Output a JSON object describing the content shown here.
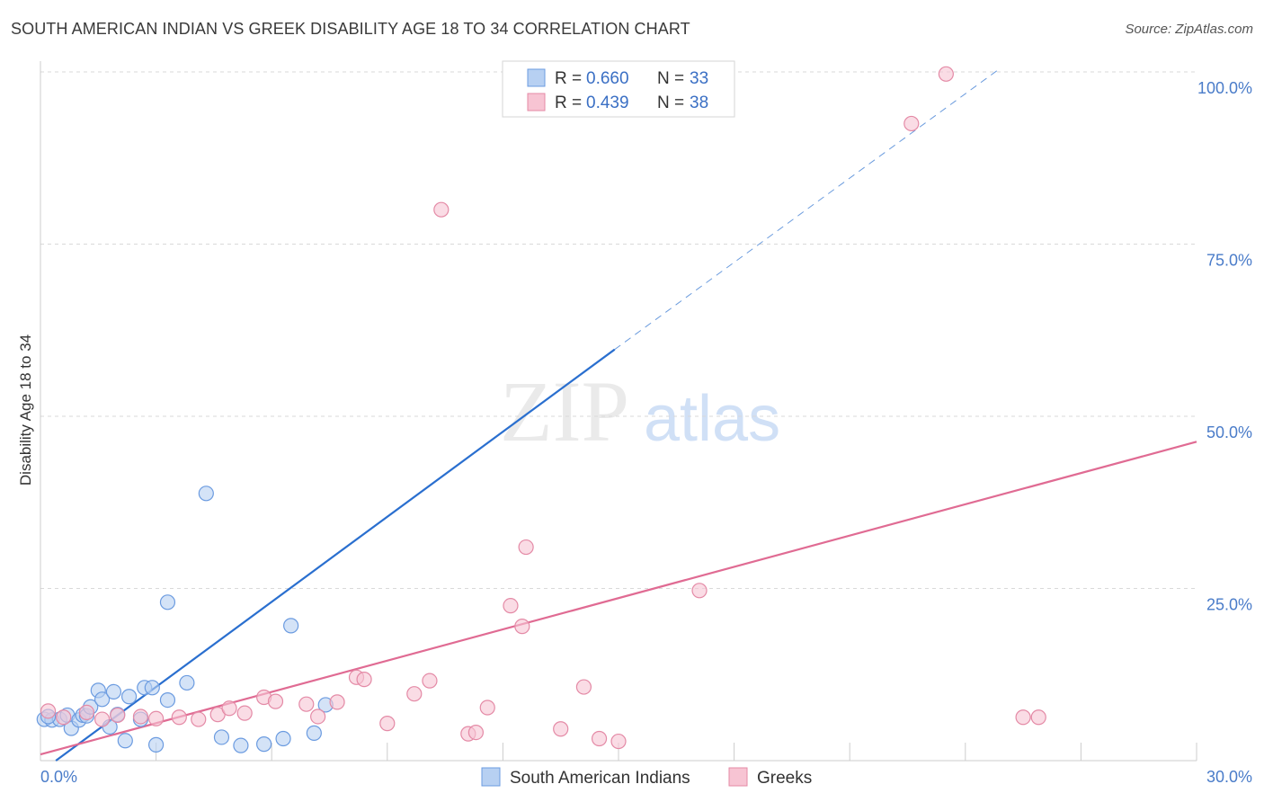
{
  "title": "SOUTH AMERICAN INDIAN VS GREEK DISABILITY AGE 18 TO 34 CORRELATION CHART",
  "source": "Source: ZipAtlas.com",
  "watermark": {
    "zip": "ZIP",
    "atlas": "atlas"
  },
  "legend_top": [
    {
      "r_label": "R = ",
      "r_value": "0.660",
      "n_label": "N = ",
      "n_value": "33"
    },
    {
      "r_label": "R = ",
      "r_value": "0.439",
      "n_label": "N = ",
      "n_value": "38"
    }
  ],
  "legend_bottom": [
    "South American Indians",
    "Greeks"
  ],
  "colors": {
    "blue_fill": "#b7d0f2",
    "blue_stroke": "#6b9be0",
    "blue_line": "#2a6fcf",
    "pink_fill": "#f7c4d3",
    "pink_stroke": "#e48aa6",
    "pink_line": "#e06b93",
    "tick": "#4a7cc9",
    "grid": "#d9d9d9"
  },
  "chart_data": {
    "type": "scatter",
    "title": "SOUTH AMERICAN INDIAN VS GREEK DISABILITY AGE 18 TO 34 CORRELATION CHART",
    "xlabel": "",
    "ylabel": "Disability Age 18 to 34",
    "xlim": [
      0,
      30
    ],
    "ylim": [
      0,
      100
    ],
    "x_ticks": [
      "0.0%",
      "30.0%"
    ],
    "y_ticks": [
      "25.0%",
      "50.0%",
      "75.0%",
      "100.0%"
    ],
    "y_tick_values": [
      25,
      50,
      75,
      100
    ],
    "grid": true,
    "series": [
      {
        "name": "South American Indians",
        "R": 0.66,
        "N": 33,
        "points": [
          [
            0.1,
            6.0
          ],
          [
            0.3,
            5.9
          ],
          [
            0.5,
            6.0
          ],
          [
            0.7,
            6.6
          ],
          [
            0.8,
            4.7
          ],
          [
            1.0,
            5.9
          ],
          [
            1.1,
            6.6
          ],
          [
            1.2,
            6.5
          ],
          [
            1.3,
            7.8
          ],
          [
            1.5,
            10.2
          ],
          [
            1.6,
            8.9
          ],
          [
            1.8,
            4.9
          ],
          [
            1.9,
            10.0
          ],
          [
            2.0,
            6.7
          ],
          [
            2.2,
            2.9
          ],
          [
            2.3,
            9.3
          ],
          [
            2.6,
            6.0
          ],
          [
            2.7,
            10.6
          ],
          [
            2.9,
            10.6
          ],
          [
            3.0,
            2.3
          ],
          [
            3.3,
            8.8
          ],
          [
            3.3,
            23.0
          ],
          [
            3.8,
            11.3
          ],
          [
            4.3,
            38.8
          ],
          [
            4.7,
            3.4
          ],
          [
            5.2,
            2.2
          ],
          [
            5.8,
            2.4
          ],
          [
            6.3,
            3.2
          ],
          [
            6.5,
            19.6
          ],
          [
            7.1,
            4.0
          ],
          [
            7.4,
            8.1
          ],
          [
            0.2,
            6.4
          ],
          [
            13.9,
            100.0
          ]
        ]
      },
      {
        "name": "Greeks",
        "R": 0.439,
        "N": 38,
        "points": [
          [
            0.2,
            7.2
          ],
          [
            0.6,
            6.3
          ],
          [
            1.2,
            7.0
          ],
          [
            1.6,
            6.0
          ],
          [
            2.0,
            6.6
          ],
          [
            2.6,
            6.4
          ],
          [
            3.0,
            6.1
          ],
          [
            3.6,
            6.3
          ],
          [
            4.1,
            6.0
          ],
          [
            4.6,
            6.7
          ],
          [
            4.9,
            7.6
          ],
          [
            5.3,
            6.9
          ],
          [
            5.8,
            9.2
          ],
          [
            6.1,
            8.6
          ],
          [
            6.9,
            8.2
          ],
          [
            7.2,
            6.4
          ],
          [
            7.7,
            8.5
          ],
          [
            8.2,
            12.1
          ],
          [
            8.4,
            11.8
          ],
          [
            9.0,
            5.4
          ],
          [
            9.7,
            9.7
          ],
          [
            10.1,
            11.6
          ],
          [
            10.4,
            80.0
          ],
          [
            11.1,
            3.9
          ],
          [
            11.3,
            4.1
          ],
          [
            11.6,
            7.7
          ],
          [
            12.2,
            22.5
          ],
          [
            12.5,
            19.5
          ],
          [
            12.6,
            31.0
          ],
          [
            13.5,
            4.6
          ],
          [
            14.1,
            10.7
          ],
          [
            14.5,
            3.2
          ],
          [
            15.0,
            2.8
          ],
          [
            17.1,
            24.7
          ],
          [
            22.6,
            92.5
          ],
          [
            23.5,
            99.7
          ],
          [
            25.5,
            6.3
          ],
          [
            25.9,
            6.3
          ]
        ]
      }
    ],
    "trend_lines": [
      {
        "series": "South American Indians",
        "x": [
          0.4,
          14.9
        ],
        "y": [
          0.0,
          59.7
        ],
        "dashed_extension_x": [
          14.9,
          24.9
        ],
        "dashed_extension_y": [
          59.7,
          100.5
        ]
      },
      {
        "series": "Greeks",
        "x": [
          0.0,
          30.0
        ],
        "y": [
          0.9,
          46.3
        ]
      }
    ]
  }
}
